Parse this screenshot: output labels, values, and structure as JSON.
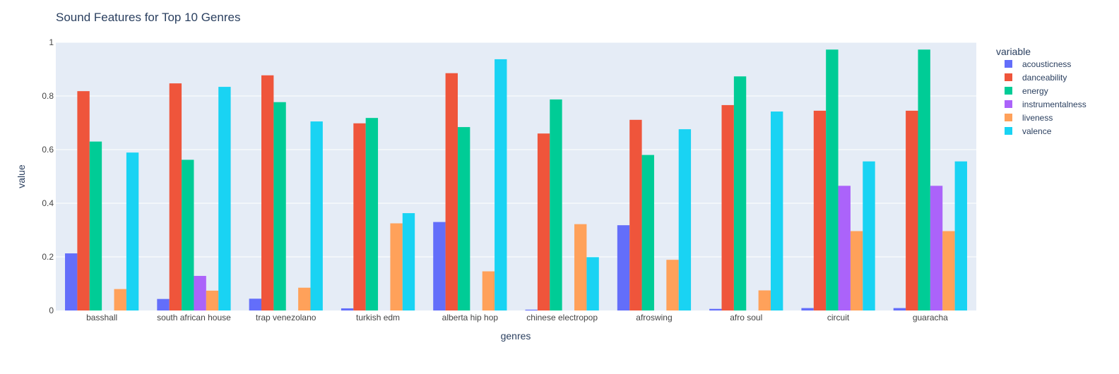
{
  "chart_data": {
    "type": "bar",
    "barmode": "group",
    "title": "Sound Features for Top 10 Genres",
    "xlabel": "genres",
    "ylabel": "value",
    "ylim": [
      0,
      1.0
    ],
    "yticks": [
      0,
      0.2,
      0.4,
      0.6,
      0.8,
      1
    ],
    "ytick_labels": [
      "0",
      "0.2",
      "0.4",
      "0.6",
      "0.8",
      "1"
    ],
    "grid": true,
    "legend_title": "variable",
    "legend_position": "right",
    "categories": [
      "basshall",
      "south african house",
      "trap venezolano",
      "turkish edm",
      "alberta hip hop",
      "chinese electropop",
      "afroswing",
      "afro soul",
      "circuit",
      "guaracha"
    ],
    "series": [
      {
        "name": "acousticness",
        "color": "#636efa",
        "values": [
          0.213,
          0.043,
          0.044,
          0.008,
          0.33,
          0.003,
          0.318,
          0.006,
          0.009,
          0.009
        ]
      },
      {
        "name": "danceability",
        "color": "#ef553b",
        "values": [
          0.818,
          0.847,
          0.877,
          0.698,
          0.885,
          0.66,
          0.711,
          0.766,
          0.745,
          0.745
        ]
      },
      {
        "name": "energy",
        "color": "#00cc96",
        "values": [
          0.63,
          0.562,
          0.777,
          0.718,
          0.684,
          0.787,
          0.58,
          0.873,
          0.973,
          0.973
        ]
      },
      {
        "name": "instrumentalness",
        "color": "#ab63fa",
        "values": [
          0.0,
          0.129,
          0.0,
          0.0,
          0.0,
          0.0,
          0.0,
          0.0,
          0.465,
          0.465
        ]
      },
      {
        "name": "liveness",
        "color": "#ffa15a",
        "values": [
          0.08,
          0.074,
          0.085,
          0.325,
          0.146,
          0.322,
          0.189,
          0.075,
          0.296,
          0.296
        ]
      },
      {
        "name": "valence",
        "color": "#19d3f3",
        "values": [
          0.589,
          0.834,
          0.705,
          0.363,
          0.937,
          0.199,
          0.676,
          0.742,
          0.556,
          0.556
        ]
      }
    ]
  },
  "colors": {
    "plot_background": "#e5ecf6",
    "gridline": "#ffffff",
    "text": "#2a3f5f",
    "tick_text": "#444444"
  }
}
